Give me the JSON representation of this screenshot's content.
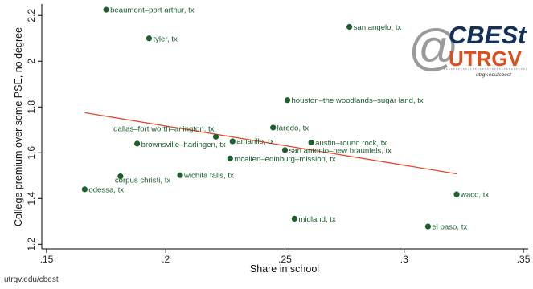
{
  "chart_data": {
    "type": "scatter",
    "xlabel": "Share in school",
    "ylabel": "College premium over some PSE, no degree",
    "xlim": [
      0.148,
      0.352
    ],
    "ylim": [
      1.18,
      2.25
    ],
    "xticks": [
      0.15,
      0.2,
      0.25,
      0.3,
      0.35
    ],
    "xtick_labels": [
      ".15",
      ".2",
      ".25",
      ".3",
      ".35"
    ],
    "yticks": [
      1.2,
      1.4,
      1.6,
      1.8,
      2.0,
      2.2
    ],
    "ytick_labels": [
      "1.2",
      "1.4",
      "1.6",
      "1.8",
      "2",
      "2.2"
    ],
    "grid": false,
    "point_color": "#1f5e2f",
    "fit_line_color": "#e8462a",
    "points": [
      {
        "label": "beaumont–port arthur, tx",
        "x": 0.175,
        "y": 2.225
      },
      {
        "label": "tyler, tx",
        "x": 0.193,
        "y": 2.1
      },
      {
        "label": "san angelo, tx",
        "x": 0.277,
        "y": 2.15
      },
      {
        "label": "houston–the woodlands–sugar land, tx",
        "x": 0.251,
        "y": 1.83
      },
      {
        "label": "laredo, tx",
        "x": 0.245,
        "y": 1.71
      },
      {
        "label": "dallas–fort worth–arlington, tx",
        "x": 0.221,
        "y": 1.67
      },
      {
        "label": "amarillo, tx",
        "x": 0.228,
        "y": 1.65
      },
      {
        "label": "austin–round rock, tx",
        "x": 0.261,
        "y": 1.645
      },
      {
        "label": "brownsville–harlingen, tx",
        "x": 0.188,
        "y": 1.64
      },
      {
        "label": "san antonio–new braunfels, tx",
        "x": 0.25,
        "y": 1.612
      },
      {
        "label": "mcallen–edinburg–mission, tx",
        "x": 0.227,
        "y": 1.575
      },
      {
        "label": "wichita falls, tx",
        "x": 0.206,
        "y": 1.502
      },
      {
        "label": "corpus christi, tx",
        "x": 0.181,
        "y": 1.497
      },
      {
        "label": "odessa, tx",
        "x": 0.166,
        "y": 1.44
      },
      {
        "label": "waco, tx",
        "x": 0.322,
        "y": 1.418
      },
      {
        "label": "midland, tx",
        "x": 0.254,
        "y": 1.312
      },
      {
        "label": "el paso, tx",
        "x": 0.31,
        "y": 1.278
      }
    ],
    "fit_line": {
      "x": [
        0.166,
        0.322
      ],
      "y": [
        1.775,
        1.508
      ]
    }
  },
  "logo": {
    "at": "@",
    "name": "CBESt",
    "org": "UTRGV",
    "url": "utrgv.edu/cbest"
  },
  "footer": {
    "text": "utrgv.edu/cbest"
  }
}
